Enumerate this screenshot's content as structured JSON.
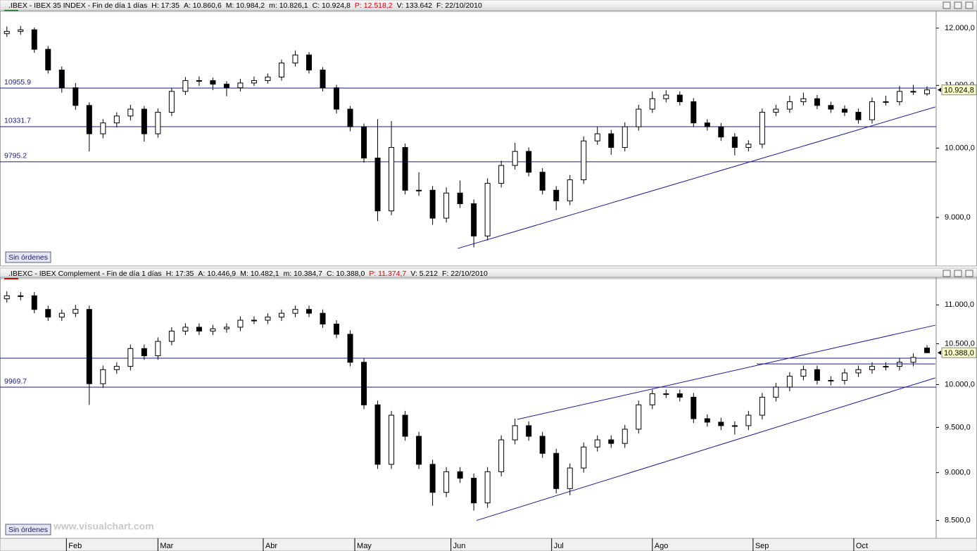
{
  "chart_data": [
    {
      "type": "candlestick",
      "symbol": ".IBEX - IBEX 35 INDEX - Fin de día 1 días",
      "symbol_color": "#1a7a1a",
      "fields": [
        {
          "text": "H: 17:35"
        },
        {
          "text": "A: 10.860,6"
        },
        {
          "text": "M: 10.984,2"
        },
        {
          "text": "m: 10.826,1"
        },
        {
          "text": "C: 10.924,8"
        },
        {
          "text": "P: 12.518,2",
          "color": "#e00000"
        },
        {
          "text": "V: 133.642"
        },
        {
          "text": "F: 22/10/2010"
        }
      ],
      "log": true,
      "xlim": [
        -1.5,
        203
      ],
      "ylim": [
        8360,
        12285
      ],
      "yticks": [
        {
          "value": 12000,
          "label": "12.000,0"
        },
        {
          "value": 11000,
          "label": "11.000,0"
        },
        {
          "value": 10000,
          "label": "10.000,0"
        },
        {
          "value": 9000,
          "label": "9.000,0"
        }
      ],
      "x": [
        0,
        3,
        6,
        9,
        12,
        15,
        18,
        21,
        24,
        27,
        30,
        33,
        36,
        39,
        42,
        45,
        48,
        51,
        54,
        57,
        60,
        63,
        66,
        69,
        72,
        75,
        78,
        81,
        84,
        87,
        90,
        93,
        96,
        99,
        102,
        105,
        108,
        111,
        114,
        117,
        120,
        123,
        126,
        129,
        132,
        135,
        138,
        141,
        144,
        147,
        150,
        153,
        156,
        159,
        162,
        165,
        168,
        171,
        174,
        177,
        180,
        183,
        186,
        189,
        192,
        195,
        198,
        201
      ],
      "candles": [
        [
          11900,
          12030,
          11840,
          11940
        ],
        [
          11940,
          12040,
          11880,
          11970
        ],
        [
          11970,
          12010,
          11560,
          11620
        ],
        [
          11620,
          11680,
          11200,
          11260
        ],
        [
          11260,
          11320,
          10880,
          10960
        ],
        [
          10960,
          11040,
          10600,
          10670
        ],
        [
          10670,
          10720,
          9950,
          10220
        ],
        [
          10220,
          10450,
          10150,
          10390
        ],
        [
          10390,
          10560,
          10320,
          10500
        ],
        [
          10500,
          10680,
          10430,
          10610
        ],
        [
          10610,
          10660,
          10100,
          10220
        ],
        [
          10220,
          10620,
          10160,
          10560
        ],
        [
          10560,
          10960,
          10500,
          10900
        ],
        [
          10900,
          11140,
          10840,
          11080
        ],
        [
          11080,
          11150,
          10990,
          11080
        ],
        [
          11080,
          11130,
          10920,
          11020
        ],
        [
          11020,
          11070,
          10820,
          10960
        ],
        [
          10960,
          11110,
          10900,
          11040
        ],
        [
          11040,
          11150,
          10990,
          11080
        ],
        [
          11080,
          11200,
          11030,
          11140
        ],
        [
          11140,
          11440,
          11080,
          11380
        ],
        [
          11380,
          11600,
          11320,
          11520
        ],
        [
          11520,
          11570,
          11200,
          11260
        ],
        [
          11260,
          11310,
          10900,
          10960
        ],
        [
          10960,
          11010,
          10540,
          10610
        ],
        [
          10610,
          10660,
          10260,
          10330
        ],
        [
          10330,
          10380,
          9780,
          9850
        ],
        [
          9850,
          10450,
          8950,
          9090
        ],
        [
          9090,
          10420,
          9030,
          10010
        ],
        [
          10010,
          10070,
          9320,
          9380
        ],
        [
          9380,
          9640,
          9300,
          9380
        ],
        [
          9380,
          9440,
          8900,
          8990
        ],
        [
          8990,
          9420,
          8930,
          9340
        ],
        [
          9340,
          9520,
          9130,
          9190
        ],
        [
          9190,
          9250,
          8600,
          8750
        ],
        [
          8750,
          9550,
          8690,
          9480
        ],
        [
          9480,
          9810,
          9420,
          9740
        ],
        [
          9740,
          10080,
          9680,
          9950
        ],
        [
          9950,
          10010,
          9580,
          9640
        ],
        [
          9640,
          9700,
          9320,
          9380
        ],
        [
          9380,
          9440,
          9100,
          9230
        ],
        [
          9230,
          9600,
          9170,
          9530
        ],
        [
          9530,
          10180,
          9470,
          10110
        ],
        [
          10110,
          10330,
          10050,
          10220
        ],
        [
          10220,
          10280,
          9900,
          10010
        ],
        [
          10010,
          10400,
          9950,
          10330
        ],
        [
          10330,
          10680,
          10270,
          10610
        ],
        [
          10610,
          10900,
          10550,
          10780
        ],
        [
          10780,
          10920,
          10720,
          10840
        ],
        [
          10840,
          10900,
          10670,
          10730
        ],
        [
          10730,
          10790,
          10330,
          10390
        ],
        [
          10390,
          10450,
          10270,
          10330
        ],
        [
          10330,
          10390,
          10110,
          10170
        ],
        [
          10170,
          10230,
          9890,
          10010
        ],
        [
          10010,
          10120,
          9950,
          10060
        ],
        [
          10060,
          10620,
          10000,
          10560
        ],
        [
          10560,
          10680,
          10500,
          10610
        ],
        [
          10610,
          10830,
          10550,
          10730
        ],
        [
          10730,
          10880,
          10670,
          10780
        ],
        [
          10780,
          10840,
          10610,
          10670
        ],
        [
          10670,
          10730,
          10550,
          10610
        ],
        [
          10610,
          10670,
          10500,
          10560
        ],
        [
          10560,
          10620,
          10380,
          10440
        ],
        [
          10440,
          10800,
          10380,
          10730
        ],
        [
          10730,
          10830,
          10670,
          10730
        ],
        [
          10730,
          10990,
          10670,
          10900
        ],
        [
          10900,
          11010,
          10840,
          10900
        ],
        [
          10860.6,
          10984.2,
          10826.1,
          10924.8
        ]
      ],
      "levels": [
        10955.9,
        10331.7,
        9795.2
      ],
      "trendlines": [
        {
          "x": [
            98.5,
            202.8
          ],
          "values": [
            8586,
            10645
          ]
        }
      ],
      "line_color": "#1a1a8c",
      "last_label": "10.924,8",
      "button": "Sin órdenes"
    },
    {
      "type": "candlestick",
      "symbol": ".IBEXC - IBEX Complement - Fin de día 1 días",
      "symbol_color": "#e00000",
      "fields": [
        {
          "text": "H: 17:35"
        },
        {
          "text": "A: 10.446,9"
        },
        {
          "text": "M: 10.482,1"
        },
        {
          "text": "m: 10.384,7"
        },
        {
          "text": "C: 10.388,0"
        },
        {
          "text": "P: 11.374,7",
          "color": "#e00000"
        },
        {
          "text": "V: 5.212"
        },
        {
          "text": "F: 22/10/2010"
        }
      ],
      "log": true,
      "xlim": [
        -1.5,
        203
      ],
      "ylim": [
        8320,
        11350
      ],
      "yticks": [
        {
          "value": 11000,
          "label": "11.000,0"
        },
        {
          "value": 10500,
          "label": "10.500,0"
        },
        {
          "value": 10000,
          "label": "10.000,0"
        },
        {
          "value": 9500,
          "label": "9.500,0"
        },
        {
          "value": 9000,
          "label": "9.000,0"
        },
        {
          "value": 8500,
          "label": "8.500,0"
        }
      ],
      "xticks": [
        {
          "value": 13,
          "label": "Feb"
        },
        {
          "value": 33,
          "label": "Mar"
        },
        {
          "value": 56,
          "label": "Abr"
        },
        {
          "value": 76,
          "label": "May"
        },
        {
          "value": 97,
          "label": "Jun"
        },
        {
          "value": 119,
          "label": "Jul"
        },
        {
          "value": 141,
          "label": "Ago"
        },
        {
          "value": 163,
          "label": "Sep"
        },
        {
          "value": 185,
          "label": "Oct"
        }
      ],
      "x": [
        0,
        3,
        6,
        9,
        12,
        15,
        18,
        21,
        24,
        27,
        30,
        33,
        36,
        39,
        42,
        45,
        48,
        51,
        54,
        57,
        60,
        63,
        66,
        69,
        72,
        75,
        78,
        81,
        84,
        87,
        90,
        93,
        96,
        99,
        102,
        105,
        108,
        111,
        114,
        117,
        120,
        123,
        126,
        129,
        132,
        135,
        138,
        141,
        144,
        147,
        150,
        153,
        156,
        159,
        162,
        165,
        168,
        171,
        174,
        177,
        180,
        183,
        186,
        189,
        192,
        195,
        198,
        201
      ],
      "candles": [
        [
          11080,
          11180,
          11030,
          11120
        ],
        [
          11120,
          11170,
          11060,
          11120
        ],
        [
          11120,
          11170,
          10890,
          10940
        ],
        [
          10940,
          10990,
          10790,
          10840
        ],
        [
          10840,
          10940,
          10790,
          10890
        ],
        [
          10890,
          11000,
          10840,
          10940
        ],
        [
          10940,
          10990,
          9760,
          10010
        ],
        [
          10010,
          10230,
          9960,
          10180
        ],
        [
          10180,
          10270,
          10130,
          10220
        ],
        [
          10220,
          10490,
          10170,
          10440
        ],
        [
          10440,
          10490,
          10300,
          10350
        ],
        [
          10350,
          10580,
          10300,
          10530
        ],
        [
          10530,
          10710,
          10480,
          10660
        ],
        [
          10660,
          10760,
          10610,
          10710
        ],
        [
          10710,
          10760,
          10610,
          10660
        ],
        [
          10660,
          10740,
          10610,
          10690
        ],
        [
          10690,
          10760,
          10640,
          10710
        ],
        [
          10710,
          10850,
          10660,
          10800
        ],
        [
          10800,
          10850,
          10750,
          10800
        ],
        [
          10800,
          10890,
          10750,
          10840
        ],
        [
          10840,
          10940,
          10790,
          10890
        ],
        [
          10890,
          10990,
          10840,
          10940
        ],
        [
          10940,
          10990,
          10840,
          10890
        ],
        [
          10890,
          10940,
          10700,
          10750
        ],
        [
          10750,
          10800,
          10570,
          10620
        ],
        [
          10620,
          10670,
          10220,
          10270
        ],
        [
          10270,
          10320,
          9710,
          9760
        ],
        [
          9760,
          9810,
          9040,
          9090
        ],
        [
          9090,
          9690,
          9040,
          9640
        ],
        [
          9640,
          9690,
          9350,
          9400
        ],
        [
          9400,
          9450,
          9040,
          9090
        ],
        [
          9090,
          9140,
          8650,
          8790
        ],
        [
          8790,
          9060,
          8740,
          9010
        ],
        [
          9010,
          9060,
          8890,
          8940
        ],
        [
          8940,
          8990,
          8600,
          8680
        ],
        [
          8680,
          9060,
          8630,
          9010
        ],
        [
          9010,
          9410,
          8960,
          9360
        ],
        [
          9360,
          9600,
          9310,
          9520
        ],
        [
          9520,
          9570,
          9350,
          9400
        ],
        [
          9400,
          9450,
          9160,
          9210
        ],
        [
          9210,
          9260,
          8780,
          8830
        ],
        [
          8830,
          9100,
          8760,
          9050
        ],
        [
          9050,
          9330,
          9000,
          9280
        ],
        [
          9280,
          9410,
          9230,
          9360
        ],
        [
          9360,
          9410,
          9270,
          9320
        ],
        [
          9320,
          9530,
          9270,
          9480
        ],
        [
          9480,
          9810,
          9430,
          9760
        ],
        [
          9760,
          9940,
          9710,
          9890
        ],
        [
          9890,
          9940,
          9840,
          9890
        ],
        [
          9890,
          9940,
          9800,
          9850
        ],
        [
          9850,
          9900,
          9550,
          9600
        ],
        [
          9600,
          9650,
          9510,
          9560
        ],
        [
          9560,
          9610,
          9470,
          9520
        ],
        [
          9520,
          9570,
          9420,
          9520
        ],
        [
          9520,
          9690,
          9470,
          9640
        ],
        [
          9640,
          9900,
          9590,
          9850
        ],
        [
          9850,
          10020,
          9800,
          9970
        ],
        [
          9970,
          10150,
          9920,
          10100
        ],
        [
          10100,
          10230,
          10050,
          10180
        ],
        [
          10180,
          10230,
          10000,
          10050
        ],
        [
          10050,
          10100,
          9990,
          10050
        ],
        [
          10050,
          10190,
          10000,
          10140
        ],
        [
          10140,
          10230,
          10090,
          10180
        ],
        [
          10180,
          10270,
          10130,
          10220
        ],
        [
          10220,
          10270,
          10170,
          10220
        ],
        [
          10220,
          10320,
          10170,
          10270
        ],
        [
          10270,
          10380,
          10220,
          10330
        ],
        [
          10446.9,
          10482.1,
          10384.7,
          10388.0
        ]
      ],
      "levels": [
        9969.7
      ],
      "hlines": [
        10320
      ],
      "trendlines": [
        {
          "x": [
            102.6,
            202.8
          ],
          "values": [
            8500,
            10080
          ]
        },
        {
          "x": [
            111.5,
            202.8
          ],
          "values": [
            9592,
            10735
          ]
        },
        {
          "x": [
            163.8,
            202.8
          ],
          "values": [
            10250,
            10250
          ]
        }
      ],
      "line_color": "#1a1a8c",
      "last_label": "10.388,0",
      "button": "Sin órdenes",
      "watermark": "www.visualchart.com"
    }
  ]
}
